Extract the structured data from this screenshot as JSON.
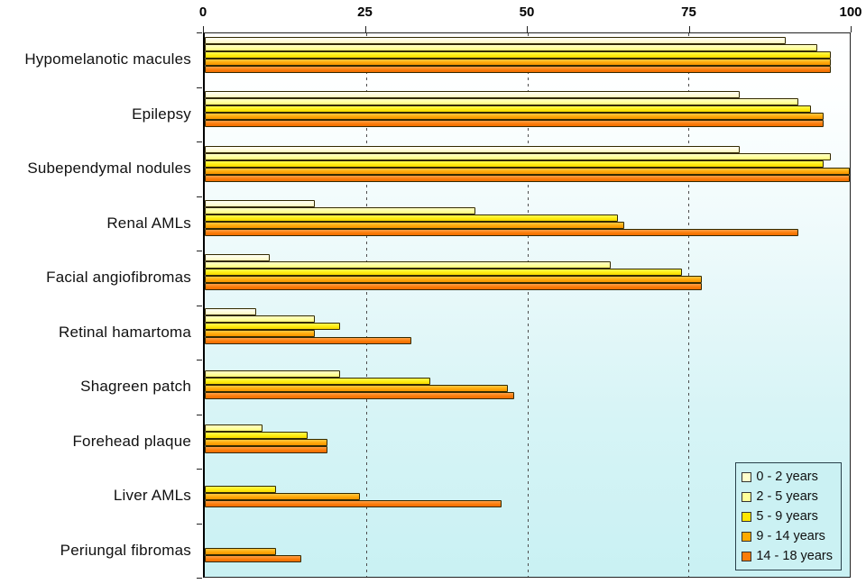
{
  "chart_data": {
    "type": "bar",
    "orientation": "horizontal",
    "title": "",
    "xlabel": "",
    "ylabel": "",
    "xlim": [
      0,
      100
    ],
    "x_ticks": [
      0,
      25,
      50,
      75,
      100
    ],
    "gridlines_at": [
      25,
      50,
      75
    ],
    "grid_style": "dashed-vertical",
    "legend_position": "bottom-right-inside",
    "categories": [
      "Hypomelanotic macules",
      "Epilepsy",
      "Subependymal nodules",
      "Renal AMLs",
      "Facial angiofibromas",
      "Retinal hamartoma",
      "Shagreen patch",
      "Forehead plaque",
      "Liver AMLs",
      "Periungal fibromas"
    ],
    "series": [
      {
        "name": "0 - 2 years",
        "legend_color": "#FFFFCC",
        "values": [
          90,
          83,
          83,
          17,
          10,
          8,
          0,
          0,
          0,
          0
        ]
      },
      {
        "name": "2 - 5 years",
        "legend_color": "#FFFF99",
        "values": [
          95,
          92,
          97,
          42,
          63,
          17,
          21,
          9,
          0,
          0
        ]
      },
      {
        "name": "5 - 9 years",
        "legend_color": "#FFE600",
        "values": [
          97,
          94,
          96,
          64,
          74,
          21,
          35,
          16,
          11,
          0
        ]
      },
      {
        "name": "9 - 14 years",
        "legend_color": "#FFAA00",
        "values": [
          97,
          96,
          100,
          65,
          77,
          17,
          47,
          19,
          24,
          11
        ]
      },
      {
        "name": "14 - 18 years",
        "legend_color": "#FB7D0A",
        "values": [
          97,
          96,
          100,
          92,
          77,
          32,
          48,
          19,
          46,
          15
        ]
      }
    ],
    "colors": {
      "plot_background_top": "#FFFFFF",
      "plot_background_bottom": "#C9F1F3",
      "legend_background": "#CBF1F3",
      "plot_border": "#222222",
      "gridline": "#4E4E4E"
    }
  }
}
